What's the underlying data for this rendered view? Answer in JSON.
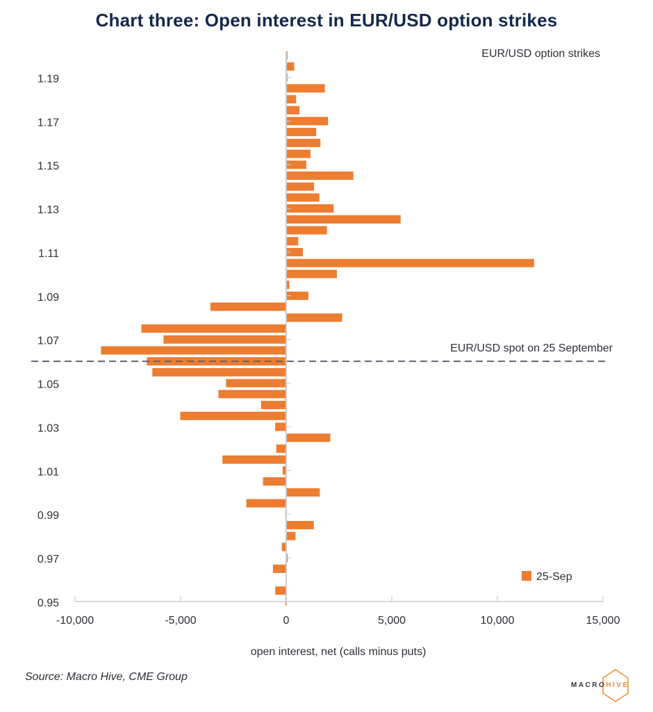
{
  "title": "Chart three: Open interest in EUR/USD option strikes",
  "source": "Source: Macro Hive, CME Group",
  "logo": {
    "macro": "MACRO",
    "hive": "HIVE"
  },
  "colors": {
    "bar": "#ed7d31",
    "title": "#13294b",
    "axis": "#c9ccd1",
    "spot_line": "#5b6470",
    "logo_accent": "#f08a2c"
  },
  "chart_data": {
    "type": "bar",
    "orientation": "horizontal",
    "title": "Chart three: Open interest in EUR/USD option strikes",
    "xlabel": "open interest, net (calls minus puts)",
    "ylabel": "",
    "series_annotation": "EUR/USD option strikes",
    "xlim": [
      -10000,
      15000
    ],
    "ylim": [
      0.95,
      1.2
    ],
    "xticks": [
      -10000,
      -5000,
      0,
      5000,
      10000,
      15000
    ],
    "xtick_labels": [
      "-10,000",
      "-5,000",
      "0",
      "5,000",
      "10,000",
      "15,000"
    ],
    "yticks": [
      1.19,
      1.17,
      1.15,
      1.13,
      1.11,
      1.09,
      1.07,
      1.05,
      1.03,
      1.01,
      0.99,
      0.97,
      0.95
    ],
    "ytick_labels": [
      "1.19",
      "1.17",
      "1.15",
      "1.13",
      "1.11",
      "1.09",
      "1.07",
      "1.05",
      "1.03",
      "1.01",
      "0.99",
      "0.97",
      "0.95"
    ],
    "legend": {
      "position": "bottom-right",
      "entries": [
        "25-Sep"
      ]
    },
    "grid": false,
    "reference_line": {
      "type": "horizontal-dashed",
      "value": 1.06,
      "label": "EUR/USD spot on 25 September"
    },
    "series": [
      {
        "name": "25-Sep",
        "strikes": [
          1.2,
          1.195,
          1.19,
          1.185,
          1.18,
          1.175,
          1.17,
          1.165,
          1.16,
          1.155,
          1.15,
          1.145,
          1.14,
          1.135,
          1.13,
          1.125,
          1.12,
          1.115,
          1.11,
          1.105,
          1.1,
          1.095,
          1.09,
          1.085,
          1.08,
          1.075,
          1.07,
          1.065,
          1.06,
          1.055,
          1.05,
          1.045,
          1.04,
          1.035,
          1.03,
          1.025,
          1.02,
          1.015,
          1.01,
          1.005,
          1.0,
          0.995,
          0.99,
          0.985,
          0.98,
          0.975,
          0.97,
          0.965,
          0.96,
          0.955,
          0.95
        ],
        "values": [
          60,
          380,
          60,
          1830,
          470,
          630,
          1980,
          1420,
          1620,
          1150,
          950,
          3180,
          1320,
          1570,
          2250,
          5420,
          1930,
          570,
          790,
          11740,
          2400,
          150,
          1050,
          -3590,
          2650,
          -6860,
          -5810,
          -8770,
          -6600,
          -6340,
          -2850,
          -3210,
          -1190,
          -5020,
          -520,
          2090,
          -470,
          -3020,
          -170,
          -1100,
          1590,
          -1890,
          -40,
          1310,
          440,
          -210,
          70,
          -630,
          0,
          -520,
          -40
        ]
      }
    ]
  }
}
